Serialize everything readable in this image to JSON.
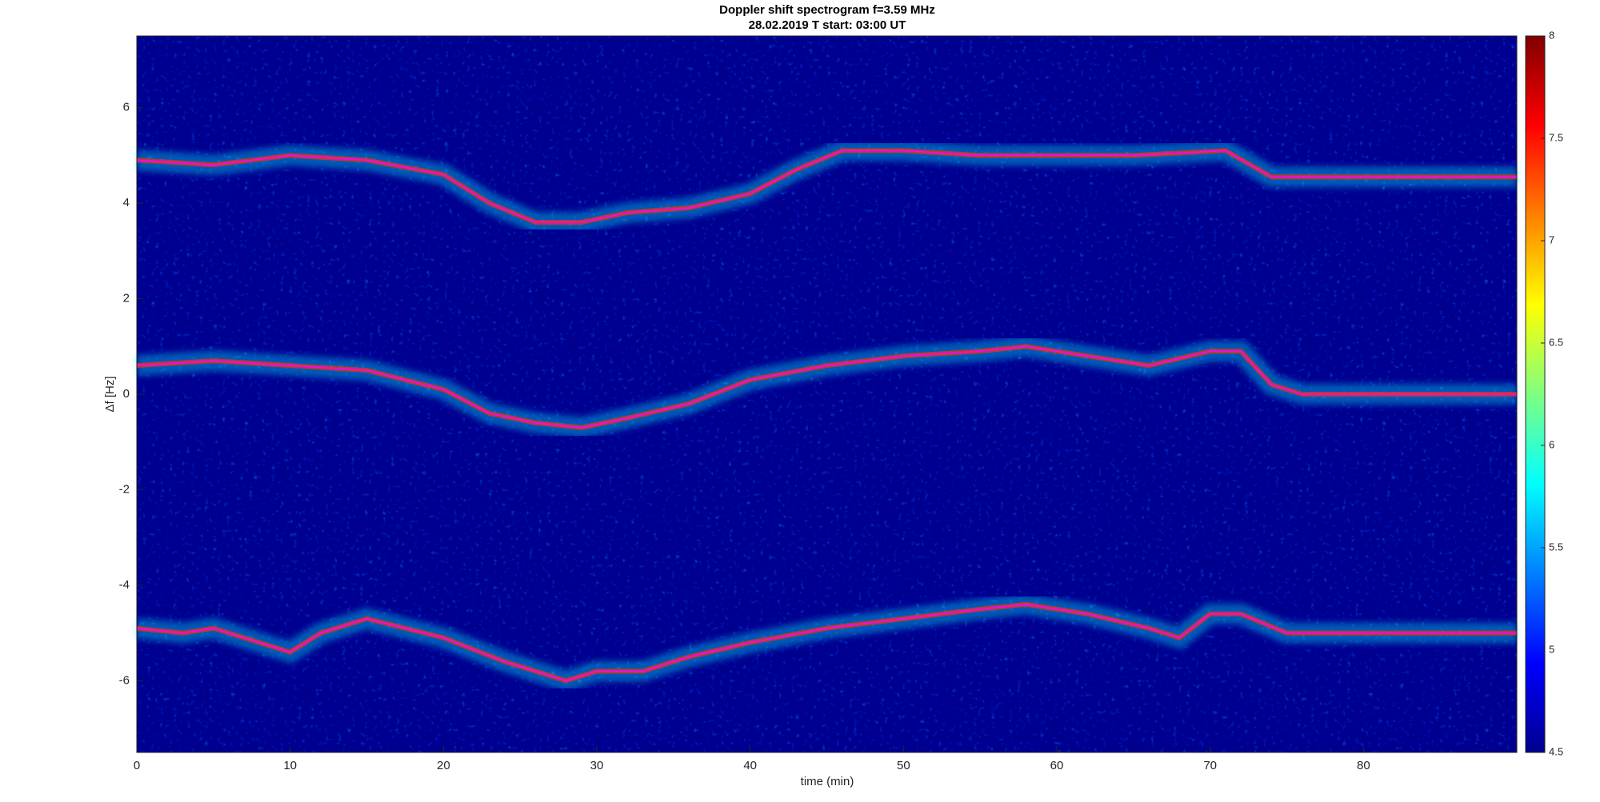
{
  "chart_data": {
    "type": "line",
    "title": "Doppler shift spectrogram f=3.59 MHz",
    "subtitle": "28.02.2019   T start: 03:00 UT",
    "xlabel": "time (min)",
    "ylabel": "Δf [Hz]",
    "xlim": [
      0,
      90
    ],
    "xticks": [
      0,
      10,
      20,
      30,
      40,
      50,
      60,
      70,
      80
    ],
    "ylim": [
      -7.5,
      7.5
    ],
    "yticks": [
      -6,
      -4,
      -2,
      0,
      2,
      4,
      6
    ],
    "background": "#00008f",
    "colorbar": {
      "clim": [
        4.5,
        8
      ],
      "ticks": [
        4.5,
        5,
        5.5,
        6,
        6.5,
        7,
        7.5,
        8
      ],
      "colormap": "jet"
    },
    "series": [
      {
        "color": "#ff00ff",
        "x": [
          0,
          5,
          10,
          15,
          20,
          23,
          26,
          29,
          32,
          36,
          40,
          43,
          46,
          50,
          55,
          60,
          65,
          71,
          74,
          80,
          90
        ],
        "values": [
          4.9,
          4.8,
          5.0,
          4.9,
          4.6,
          4.0,
          3.6,
          3.6,
          3.8,
          3.9,
          4.2,
          4.7,
          5.1,
          5.1,
          5.0,
          5.0,
          5.0,
          5.1,
          4.55,
          4.55,
          4.55
        ]
      },
      {
        "color": "#ff00ff",
        "x": [
          0,
          5,
          10,
          15,
          20,
          23,
          26,
          29,
          32,
          36,
          40,
          45,
          50,
          55,
          58,
          62,
          66,
          70,
          72,
          74,
          76,
          90
        ],
        "values": [
          0.6,
          0.7,
          0.6,
          0.5,
          0.1,
          -0.4,
          -0.6,
          -0.7,
          -0.5,
          -0.2,
          0.3,
          0.6,
          0.8,
          0.9,
          1.0,
          0.8,
          0.6,
          0.9,
          0.9,
          0.2,
          0,
          0
        ]
      },
      {
        "color": "#ff00ff",
        "x": [
          0,
          3,
          5,
          8,
          10,
          12,
          15,
          20,
          24,
          28,
          30,
          33,
          36,
          40,
          45,
          50,
          55,
          58,
          62,
          66,
          68,
          70,
          72,
          75,
          90
        ],
        "values": [
          -4.9,
          -5.0,
          -4.9,
          -5.2,
          -5.4,
          -5.0,
          -4.7,
          -5.1,
          -5.6,
          -6.0,
          -5.8,
          -5.8,
          -5.5,
          -5.2,
          -4.9,
          -4.7,
          -4.5,
          -4.4,
          -4.6,
          -4.9,
          -5.1,
          -4.6,
          -4.6,
          -5.0,
          -5.0
        ]
      }
    ]
  }
}
